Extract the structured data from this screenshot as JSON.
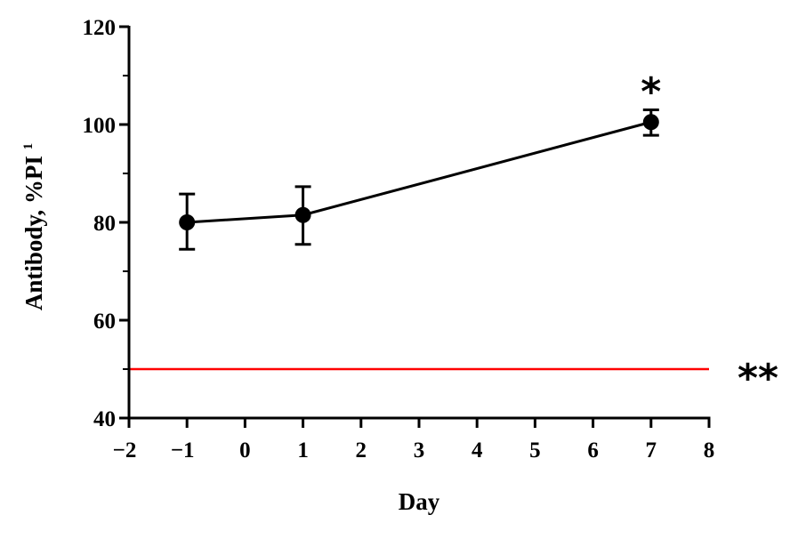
{
  "chart_data": {
    "type": "line",
    "title": "",
    "xlabel": "Day",
    "ylabel_main": "Antibody, %PI",
    "ylabel_superscript": "1",
    "xlim": [
      -2,
      8
    ],
    "ylim": [
      40,
      120
    ],
    "x_ticks": [
      -2,
      -1,
      0,
      1,
      2,
      3,
      4,
      5,
      6,
      7,
      8
    ],
    "x_tick_labels": [
      "-2",
      "-1",
      "0",
      "1",
      "2",
      "3",
      "4",
      "5",
      "6",
      "7",
      "8"
    ],
    "y_ticks": [
      40,
      60,
      80,
      100,
      120
    ],
    "y_tick_labels": [
      "40",
      "60",
      "80",
      "100",
      "120"
    ],
    "y_minor_ticks": [
      50,
      70,
      90,
      110
    ],
    "grid": false,
    "series": [
      {
        "color": "#000000",
        "points": [
          {
            "x": -1,
            "y": 80.0,
            "err_low": 74.5,
            "err_high": 85.8
          },
          {
            "x": 1,
            "y": 81.5,
            "err_low": 75.5,
            "err_high": 87.3
          },
          {
            "x": 7,
            "y": 100.5,
            "err_low": 97.8,
            "err_high": 103.0
          }
        ]
      }
    ],
    "reference_line": {
      "y": 50,
      "color": "#ff0000",
      "label": "**"
    },
    "annotations": [
      {
        "x": 7,
        "y": 108,
        "text": "*"
      }
    ]
  }
}
